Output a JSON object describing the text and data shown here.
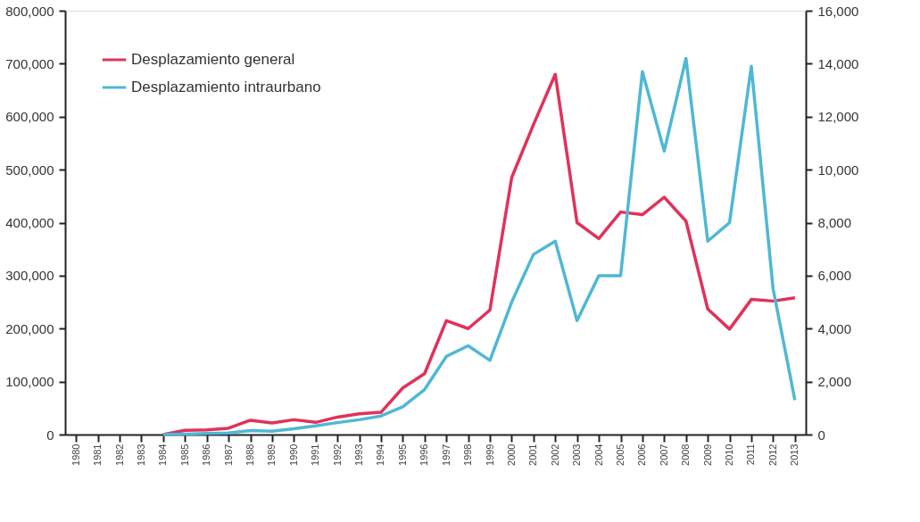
{
  "chart_data": {
    "type": "line",
    "categories": [
      "1980",
      "1981",
      "1982",
      "1983",
      "1984",
      "1985",
      "1986",
      "1987",
      "1988",
      "1989",
      "1990",
      "1991",
      "1992",
      "1993",
      "1994",
      "1995",
      "1996",
      "1997",
      "1998",
      "1999",
      "2000",
      "2001",
      "2002",
      "2003",
      "2004",
      "2005",
      "2006",
      "2007",
      "2008",
      "2009",
      "2010",
      "2011",
      "2012",
      "2013"
    ],
    "series": [
      {
        "name": "Desplazamiento general",
        "color": "#e0325a",
        "values": [
          null,
          null,
          null,
          null,
          0,
          8000,
          9000,
          12000,
          27000,
          22000,
          28000,
          23000,
          33000,
          39000,
          42000,
          88000,
          115000,
          215000,
          200000,
          235000,
          485000,
          585000,
          680000,
          400000,
          370000,
          420000,
          415000,
          448000,
          403000,
          237000,
          199000,
          255000,
          252000,
          258000
        ]
      },
      {
        "name": "Desplazamiento intraurbano",
        "color": "#4fb8d4",
        "axis": "y2",
        "values": [
          null,
          null,
          null,
          null,
          0,
          20,
          40,
          60,
          150,
          130,
          220,
          330,
          450,
          560,
          700,
          1050,
          1700,
          2950,
          3350,
          2800,
          5000,
          6800,
          7300,
          4300,
          6000,
          6000,
          13700,
          10700,
          14200,
          7300,
          8000,
          13900,
          5500,
          1300
        ]
      }
    ],
    "ylim": [
      0,
      800000
    ],
    "yticks": [
      0,
      {
        "value": 100000,
        "label": "100,000"
      },
      {
        "value": 200000,
        "label": "200,000"
      },
      {
        "value": 300000,
        "label": "300,000"
      },
      {
        "value": 400000,
        "label": "400,000"
      },
      {
        "value": 500000,
        "label": "500,000"
      },
      {
        "value": 600000,
        "label": "600,000"
      },
      {
        "value": 700000,
        "label": "700,000"
      },
      {
        "value": 800000,
        "label": "800,000"
      }
    ],
    "y2lim": [
      0,
      16000
    ],
    "y2ticks": [
      0,
      {
        "value": 2000,
        "label": "2,000"
      },
      {
        "value": 4000,
        "label": "4,000"
      },
      {
        "value": 6000,
        "label": "6,000"
      },
      {
        "value": 8000,
        "label": "8,000"
      },
      {
        "value": 10000,
        "label": "10,000"
      },
      {
        "value": 12000,
        "label": "12,000"
      },
      {
        "value": 14000,
        "label": "14,000"
      },
      {
        "value": 16000,
        "label": "16,000"
      }
    ],
    "legend": "top left",
    "grid": false,
    "marker": "none",
    "line_style": "solid"
  }
}
